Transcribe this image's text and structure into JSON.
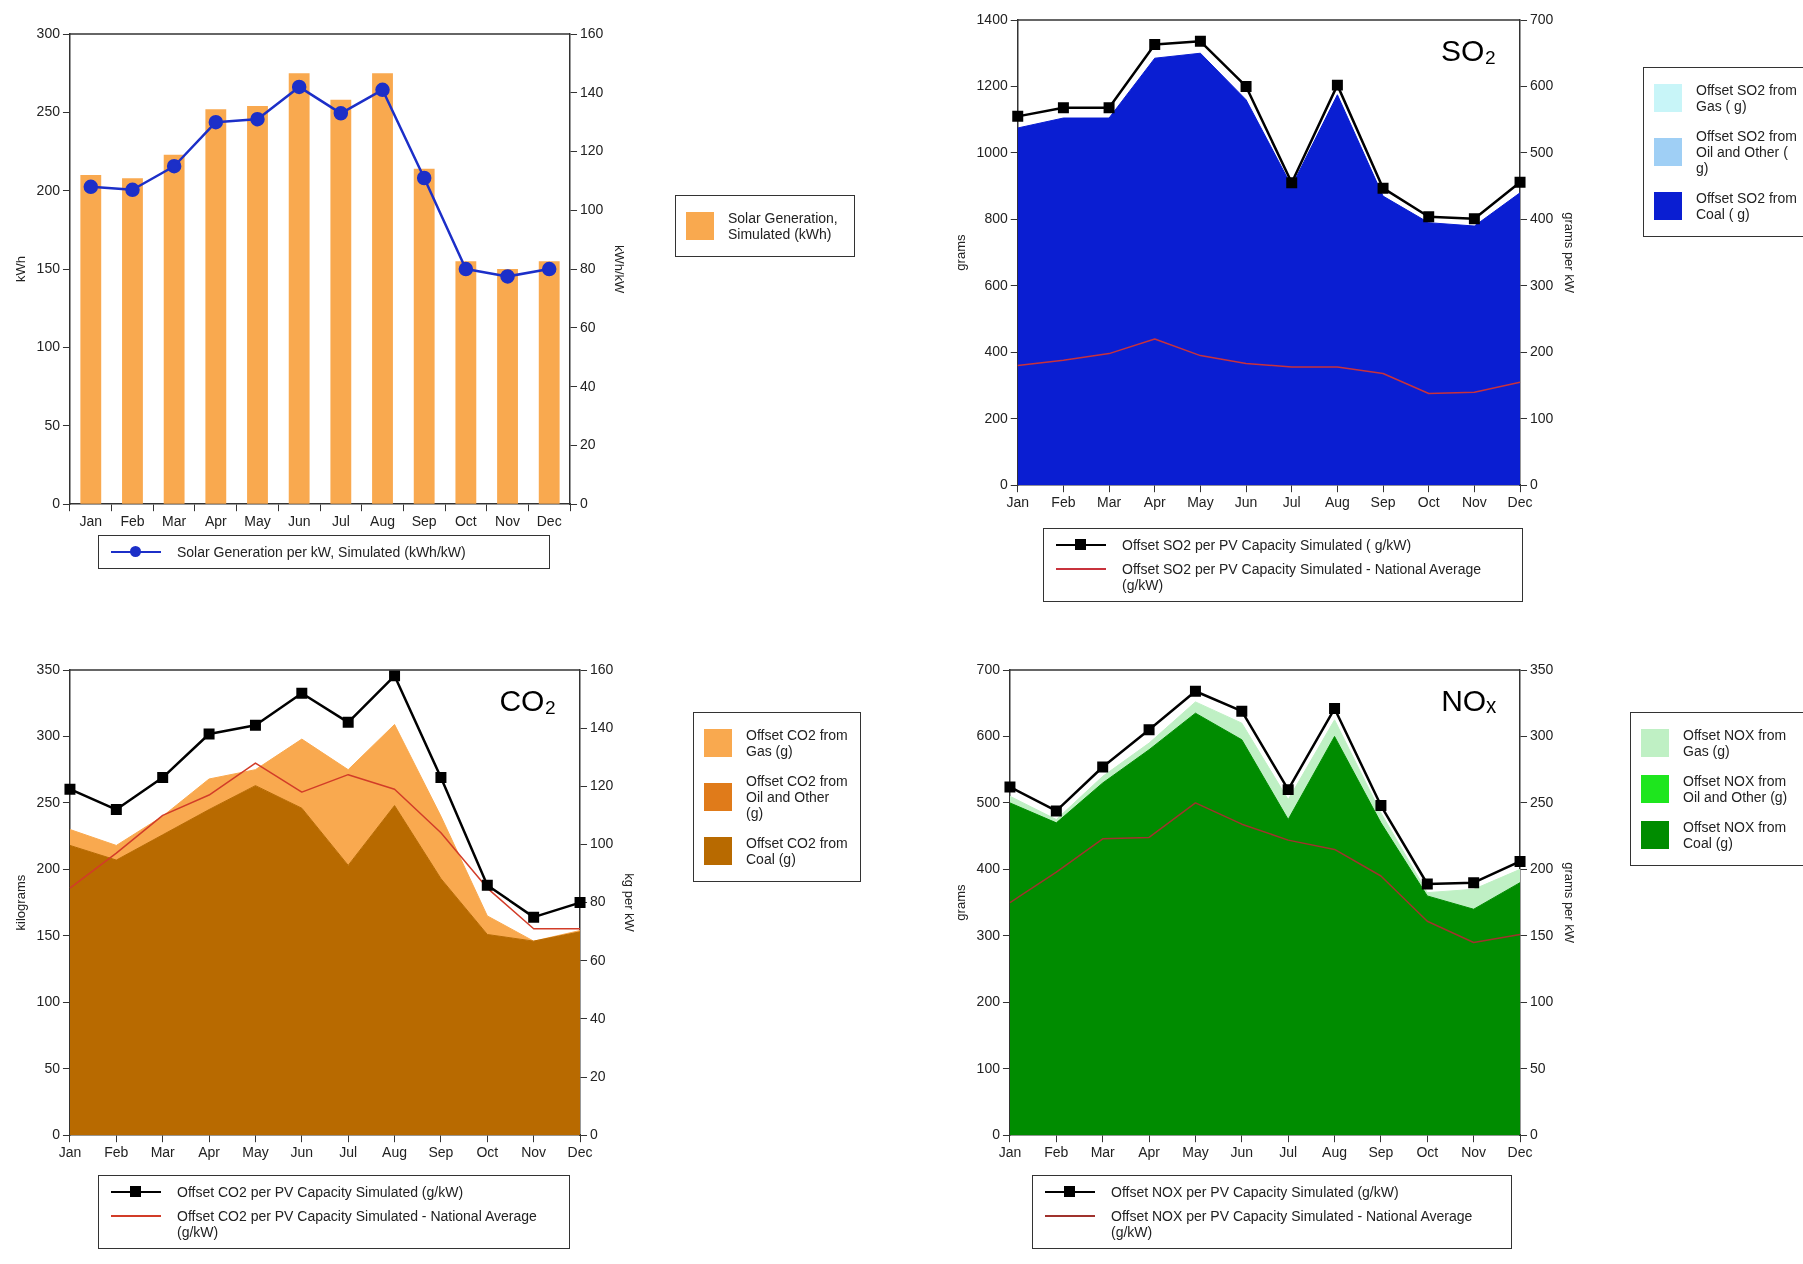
{
  "chart_data": [
    {
      "type": "bar",
      "categories": [
        "Jan",
        "Feb",
        "Mar",
        "Apr",
        "May",
        "Jun",
        "Jul",
        "Aug",
        "Sep",
        "Oct",
        "Nov",
        "Dec"
      ],
      "ylabel": "kWh",
      "y2label": "kWh/kW",
      "ylim": [
        0,
        300
      ],
      "yticks": [
        0,
        50,
        100,
        150,
        200,
        250,
        300
      ],
      "y2lim": [
        0,
        160
      ],
      "y2ticks": [
        0,
        20,
        40,
        60,
        80,
        100,
        120,
        140,
        160
      ],
      "grid": false,
      "legend": "right",
      "series": [
        {
          "name": "Solar Generation, Simulated (kWh)",
          "color": "#f9a94f",
          "values": [
            210,
            208,
            223,
            252,
            254,
            275,
            258,
            275,
            214,
            155,
            150,
            155
          ]
        },
        {
          "name": "Solar Generation per kW, Simulated (kWh/kW)",
          "type": "line",
          "axis": "y2",
          "marker": "circle",
          "color": "#1c2fc8",
          "values": [
            108,
            107,
            115,
            130,
            131,
            142,
            133,
            141,
            111,
            80,
            77.5,
            80
          ]
        }
      ]
    },
    {
      "type": "area",
      "stacked": true,
      "categories": [
        "Jan",
        "Feb",
        "Mar",
        "Apr",
        "May",
        "Jun",
        "Jul",
        "Aug",
        "Sep",
        "Oct",
        "Nov",
        "Dec"
      ],
      "ylabel": "grams",
      "y2label": "grams per kW",
      "ylim": [
        0,
        1400
      ],
      "yticks": [
        0,
        200,
        400,
        600,
        800,
        1000,
        1200,
        1400
      ],
      "y2lim": [
        0,
        700
      ],
      "y2ticks": [
        0,
        100,
        200,
        300,
        400,
        500,
        600,
        700
      ],
      "grid": false,
      "legend": "right",
      "annotations": [
        "SO₂"
      ],
      "series": [
        {
          "name": "Offset SO2 from Coal ( g)",
          "color": "#0a1ed2",
          "values": [
            1075,
            1105,
            1105,
            1285,
            1300,
            1160,
            900,
            1175,
            870,
            790,
            780,
            880
          ]
        },
        {
          "name": "Offset SO2 from Oil and Other ( g)",
          "color": "#9fcff5",
          "values": [
            null,
            null,
            null,
            null,
            null,
            null,
            null,
            null,
            null,
            null,
            null,
            null
          ]
        },
        {
          "name": "Offset SO2 from Gas ( g)",
          "color": "#c8f5f8",
          "values": [
            null,
            null,
            null,
            null,
            null,
            null,
            null,
            null,
            null,
            null,
            null,
            null
          ]
        },
        {
          "name": "Offset SO2 per PV Capacity Simulated ( g/kW)",
          "type": "line",
          "axis": "y2",
          "marker": "square",
          "color": "#000000",
          "values": [
            555,
            568,
            568,
            663,
            668,
            600,
            455,
            602,
            447,
            404,
            401,
            456
          ]
        },
        {
          "name": "Offset SO2 per PV Capacity Simulated - National Average (g/kW)",
          "type": "line",
          "axis": "y2",
          "color": "#c8323c",
          "values": [
            180,
            188,
            198,
            220,
            195,
            183,
            178,
            178,
            168,
            138,
            140,
            155
          ]
        }
      ]
    },
    {
      "type": "area",
      "stacked": true,
      "categories": [
        "Jan",
        "Feb",
        "Mar",
        "Apr",
        "May",
        "Jun",
        "Jul",
        "Aug",
        "Sep",
        "Oct",
        "Nov",
        "Dec"
      ],
      "ylabel": "kilograms",
      "y2label": "kg per kW",
      "ylim": [
        0,
        350
      ],
      "yticks": [
        0,
        50,
        100,
        150,
        200,
        250,
        300,
        350
      ],
      "y2lim": [
        0,
        160
      ],
      "y2ticks": [
        0,
        20,
        40,
        60,
        80,
        100,
        120,
        140,
        160
      ],
      "grid": false,
      "legend": "right",
      "annotations": [
        "CO₂"
      ],
      "series": [
        {
          "name": "Offset CO2 from Coal (g)",
          "color": "#b86a00",
          "values": [
            218,
            207,
            226,
            245,
            263,
            246,
            203,
            248,
            193,
            151,
            146,
            153
          ]
        },
        {
          "name": "Offset CO2 from Oil and Other (g)",
          "color": "#e07b1a",
          "values": [
            null,
            null,
            null,
            null,
            null,
            null,
            null,
            null,
            null,
            null,
            null,
            null
          ]
        },
        {
          "name": "Offset CO2 from Gas (g)",
          "color": "#f9a94f",
          "values": [
            12,
            11,
            14,
            23,
            12,
            52,
            72,
            61,
            47,
            14,
            0,
            1
          ]
        },
        {
          "name": "Offset CO2 per PV Capacity Simulated (g/kW)",
          "type": "line",
          "axis": "y2",
          "marker": "square",
          "color": "#000000",
          "values": [
            119,
            112,
            123,
            138,
            141,
            152,
            142,
            158,
            123,
            86,
            75,
            80
          ]
        },
        {
          "name": "Offset CO2 per PV Capacity Simulated - National Average (g/kW)",
          "type": "line",
          "axis": "y2",
          "color": "#d23c28",
          "values": [
            85,
            97,
            110,
            117,
            128,
            118,
            124,
            119,
            104,
            85,
            71,
            71
          ]
        }
      ]
    },
    {
      "type": "area",
      "stacked": true,
      "categories": [
        "Jan",
        "Feb",
        "Mar",
        "Apr",
        "May",
        "Jun",
        "Jul",
        "Aug",
        "Sep",
        "Oct",
        "Nov",
        "Dec"
      ],
      "ylabel": "grams",
      "y2label": "grams per kW",
      "ylim": [
        0,
        700
      ],
      "yticks": [
        0,
        100,
        200,
        300,
        400,
        500,
        600,
        700
      ],
      "y2lim": [
        0,
        350
      ],
      "y2ticks": [
        0,
        50,
        100,
        150,
        200,
        250,
        300,
        350
      ],
      "grid": false,
      "legend": "right",
      "annotations": [
        "NOₓ"
      ],
      "series": [
        {
          "name": "Offset NOX from Coal (g)",
          "color": "#008c00",
          "values": [
            500,
            470,
            530,
            580,
            635,
            595,
            475,
            600,
            470,
            360,
            340,
            380
          ]
        },
        {
          "name": "Offset NOX from Oil and Other (g)",
          "color": "#1ee61e",
          "values": [
            null,
            null,
            null,
            null,
            null,
            null,
            null,
            null,
            null,
            null,
            null,
            null
          ]
        },
        {
          "name": "Offset NOX from Gas (g)",
          "color": "#bff0c4",
          "values": [
            10,
            5,
            10,
            10,
            17,
            25,
            30,
            25,
            15,
            5,
            30,
            20
          ]
        },
        {
          "name": "Offset NOX  per PV Capacity Simulated (g/kW)",
          "type": "line",
          "axis": "y2",
          "marker": "square",
          "color": "#000000",
          "values": [
            262,
            244,
            277,
            305,
            334,
            319,
            260,
            321,
            248,
            189,
            190,
            206
          ]
        },
        {
          "name": "Offset NOX  per PV Capacity Simulated - National Average (g/kW)",
          "type": "line",
          "axis": "y2",
          "color": "#a0322d",
          "values": [
            175,
            198,
            223,
            224,
            250,
            234,
            222,
            215,
            195,
            161,
            145,
            151
          ]
        }
      ]
    }
  ]
}
